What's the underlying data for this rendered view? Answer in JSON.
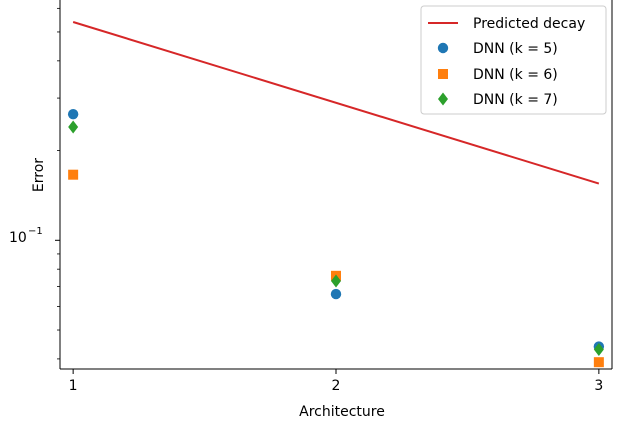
{
  "chart_data": {
    "type": "scatter",
    "title": "",
    "xlabel": "Architecture",
    "ylabel": "Error",
    "xscale": "linear",
    "yscale": "log",
    "xlim": [
      0.95,
      3.05
    ],
    "ylim": [
      0.037,
      0.64
    ],
    "grid": false,
    "legend_position": "top-right",
    "x_ticks": [
      1,
      2,
      3
    ],
    "x_tick_labels": [
      "1",
      "2",
      "3"
    ],
    "y_major_ticks": [
      0.1
    ],
    "y_major_tick_labels": [
      "10",
      "−1"
    ],
    "y_minor_ticks": [
      0.04,
      0.05,
      0.06,
      0.07,
      0.08,
      0.09,
      0.2,
      0.3,
      0.4,
      0.5,
      0.6
    ],
    "series": [
      {
        "name": "Predicted decay",
        "kind": "line",
        "color": "#d62728",
        "x": [
          1,
          3
        ],
        "y": [
          0.54,
          0.155
        ]
      },
      {
        "name": "DNN (k = 5)",
        "kind": "marker",
        "marker": "circle",
        "color": "#1f77b4",
        "x": [
          1,
          2,
          3
        ],
        "y": [
          0.265,
          0.066,
          0.044
        ]
      },
      {
        "name": "DNN (k = 6)",
        "kind": "marker",
        "marker": "square",
        "color": "#ff7f0e",
        "x": [
          1,
          2,
          3
        ],
        "y": [
          0.166,
          0.076,
          0.039
        ]
      },
      {
        "name": "DNN (k = 7)",
        "kind": "marker",
        "marker": "diamond",
        "color": "#2ca02c",
        "x": [
          1,
          2,
          3
        ],
        "y": [
          0.24,
          0.073,
          0.043
        ]
      }
    ]
  }
}
